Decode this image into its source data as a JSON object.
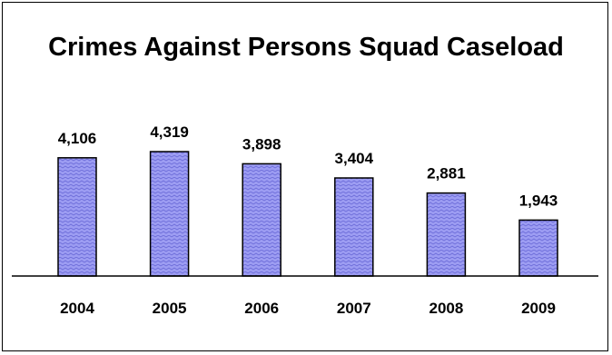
{
  "chart_data": {
    "type": "bar",
    "title": "Crimes Against Persons Squad Caseload",
    "xlabel": "",
    "ylabel": "",
    "categories": [
      "2004",
      "2005",
      "2006",
      "2007",
      "2008",
      "2009"
    ],
    "values": [
      4106,
      4319,
      3898,
      3404,
      2881,
      1943
    ],
    "value_labels": [
      "4,106",
      "4,319",
      "3,898",
      "3,404",
      "2,881",
      "1,943"
    ],
    "ylim": [
      0,
      4319
    ],
    "grid": false,
    "legend": "none",
    "colors": {
      "bar_fill": "#9c9cf2",
      "bar_pattern": "#6a6ad8",
      "bar_stroke": "#000000"
    }
  }
}
